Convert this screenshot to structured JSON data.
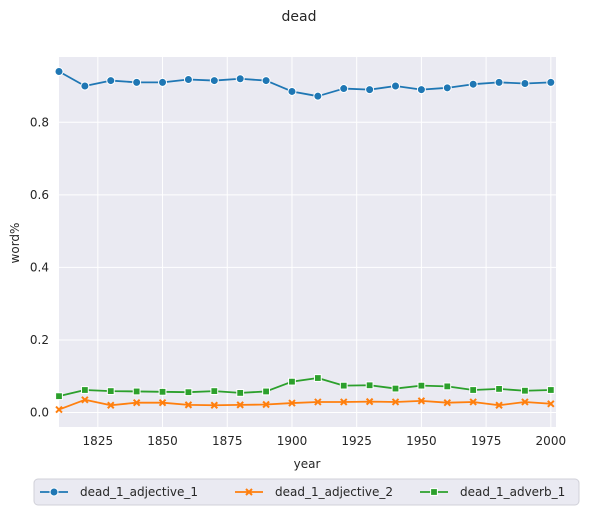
{
  "chart_data": {
    "type": "line",
    "title": "dead",
    "xlabel": "year",
    "ylabel": "word%",
    "xlim": [
      1810,
      2002
    ],
    "ylim": [
      -0.04,
      0.98
    ],
    "x_ticks": [
      1825,
      1850,
      1875,
      1900,
      1925,
      1950,
      1975,
      2000
    ],
    "y_ticks": [
      0.0,
      0.2,
      0.4,
      0.6,
      0.8
    ],
    "y_tick_labels": [
      "0.0",
      "0.2",
      "0.4",
      "0.6",
      "0.8"
    ],
    "grid": true,
    "legend_position": "bottom-center",
    "x": [
      1810,
      1820,
      1830,
      1840,
      1850,
      1860,
      1870,
      1880,
      1890,
      1900,
      1910,
      1920,
      1930,
      1940,
      1950,
      1960,
      1970,
      1980,
      1990,
      2000
    ],
    "series": [
      {
        "name": "dead_1_adjective_1",
        "color": "#1f77b4",
        "marker": "circle",
        "values": [
          0.94,
          0.9,
          0.915,
          0.91,
          0.91,
          0.918,
          0.915,
          0.92,
          0.915,
          0.885,
          0.872,
          0.893,
          0.89,
          0.9,
          0.89,
          0.895,
          0.905,
          0.91,
          0.907,
          0.91
        ]
      },
      {
        "name": "dead_1_adjective_2",
        "color": "#ff7f0e",
        "marker": "x",
        "values": [
          0.008,
          0.035,
          0.02,
          0.027,
          0.027,
          0.021,
          0.02,
          0.021,
          0.022,
          0.026,
          0.029,
          0.029,
          0.03,
          0.029,
          0.032,
          0.027,
          0.029,
          0.02,
          0.029,
          0.024
        ]
      },
      {
        "name": "dead_1_adverb_1",
        "color": "#2ca02c",
        "marker": "square",
        "values": [
          0.045,
          0.062,
          0.059,
          0.058,
          0.057,
          0.056,
          0.059,
          0.054,
          0.058,
          0.085,
          0.095,
          0.074,
          0.075,
          0.066,
          0.074,
          0.072,
          0.062,
          0.065,
          0.06,
          0.062
        ]
      }
    ]
  }
}
